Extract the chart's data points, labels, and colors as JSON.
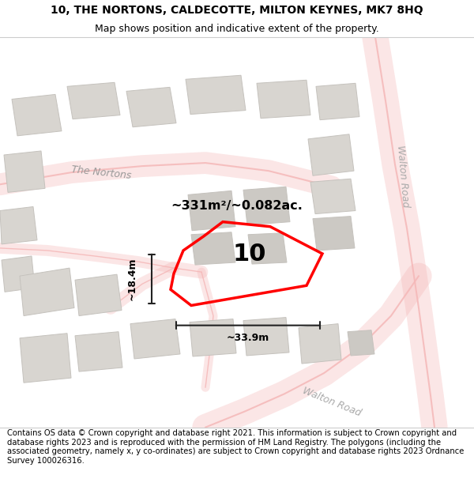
{
  "title_line1": "10, THE NORTONS, CALDECOTTE, MILTON KEYNES, MK7 8HQ",
  "title_line2": "Map shows position and indicative extent of the property.",
  "footer_text": "Contains OS data © Crown copyright and database right 2021. This information is subject to Crown copyright and database rights 2023 and is reproduced with the permission of HM Land Registry. The polygons (including the associated geometry, namely x, y co-ordinates) are subject to Crown copyright and database rights 2023 Ordnance Survey 100026316.",
  "area_label": "~331m²/~0.082ac.",
  "number_label": "10",
  "width_label": "~33.9m",
  "height_label": "~18.4m",
  "map_bg": "#f0ede8",
  "road_color": "#f5b8b8",
  "building_fill": "#d8d5d0",
  "building_edge": "#c5c2bd",
  "building_fill2": "#ccc9c4",
  "highlight_color": "#ff0000",
  "dim_color": "#222222",
  "road_label_color": "#aaaaaa",
  "nortons_label_color": "#999999"
}
